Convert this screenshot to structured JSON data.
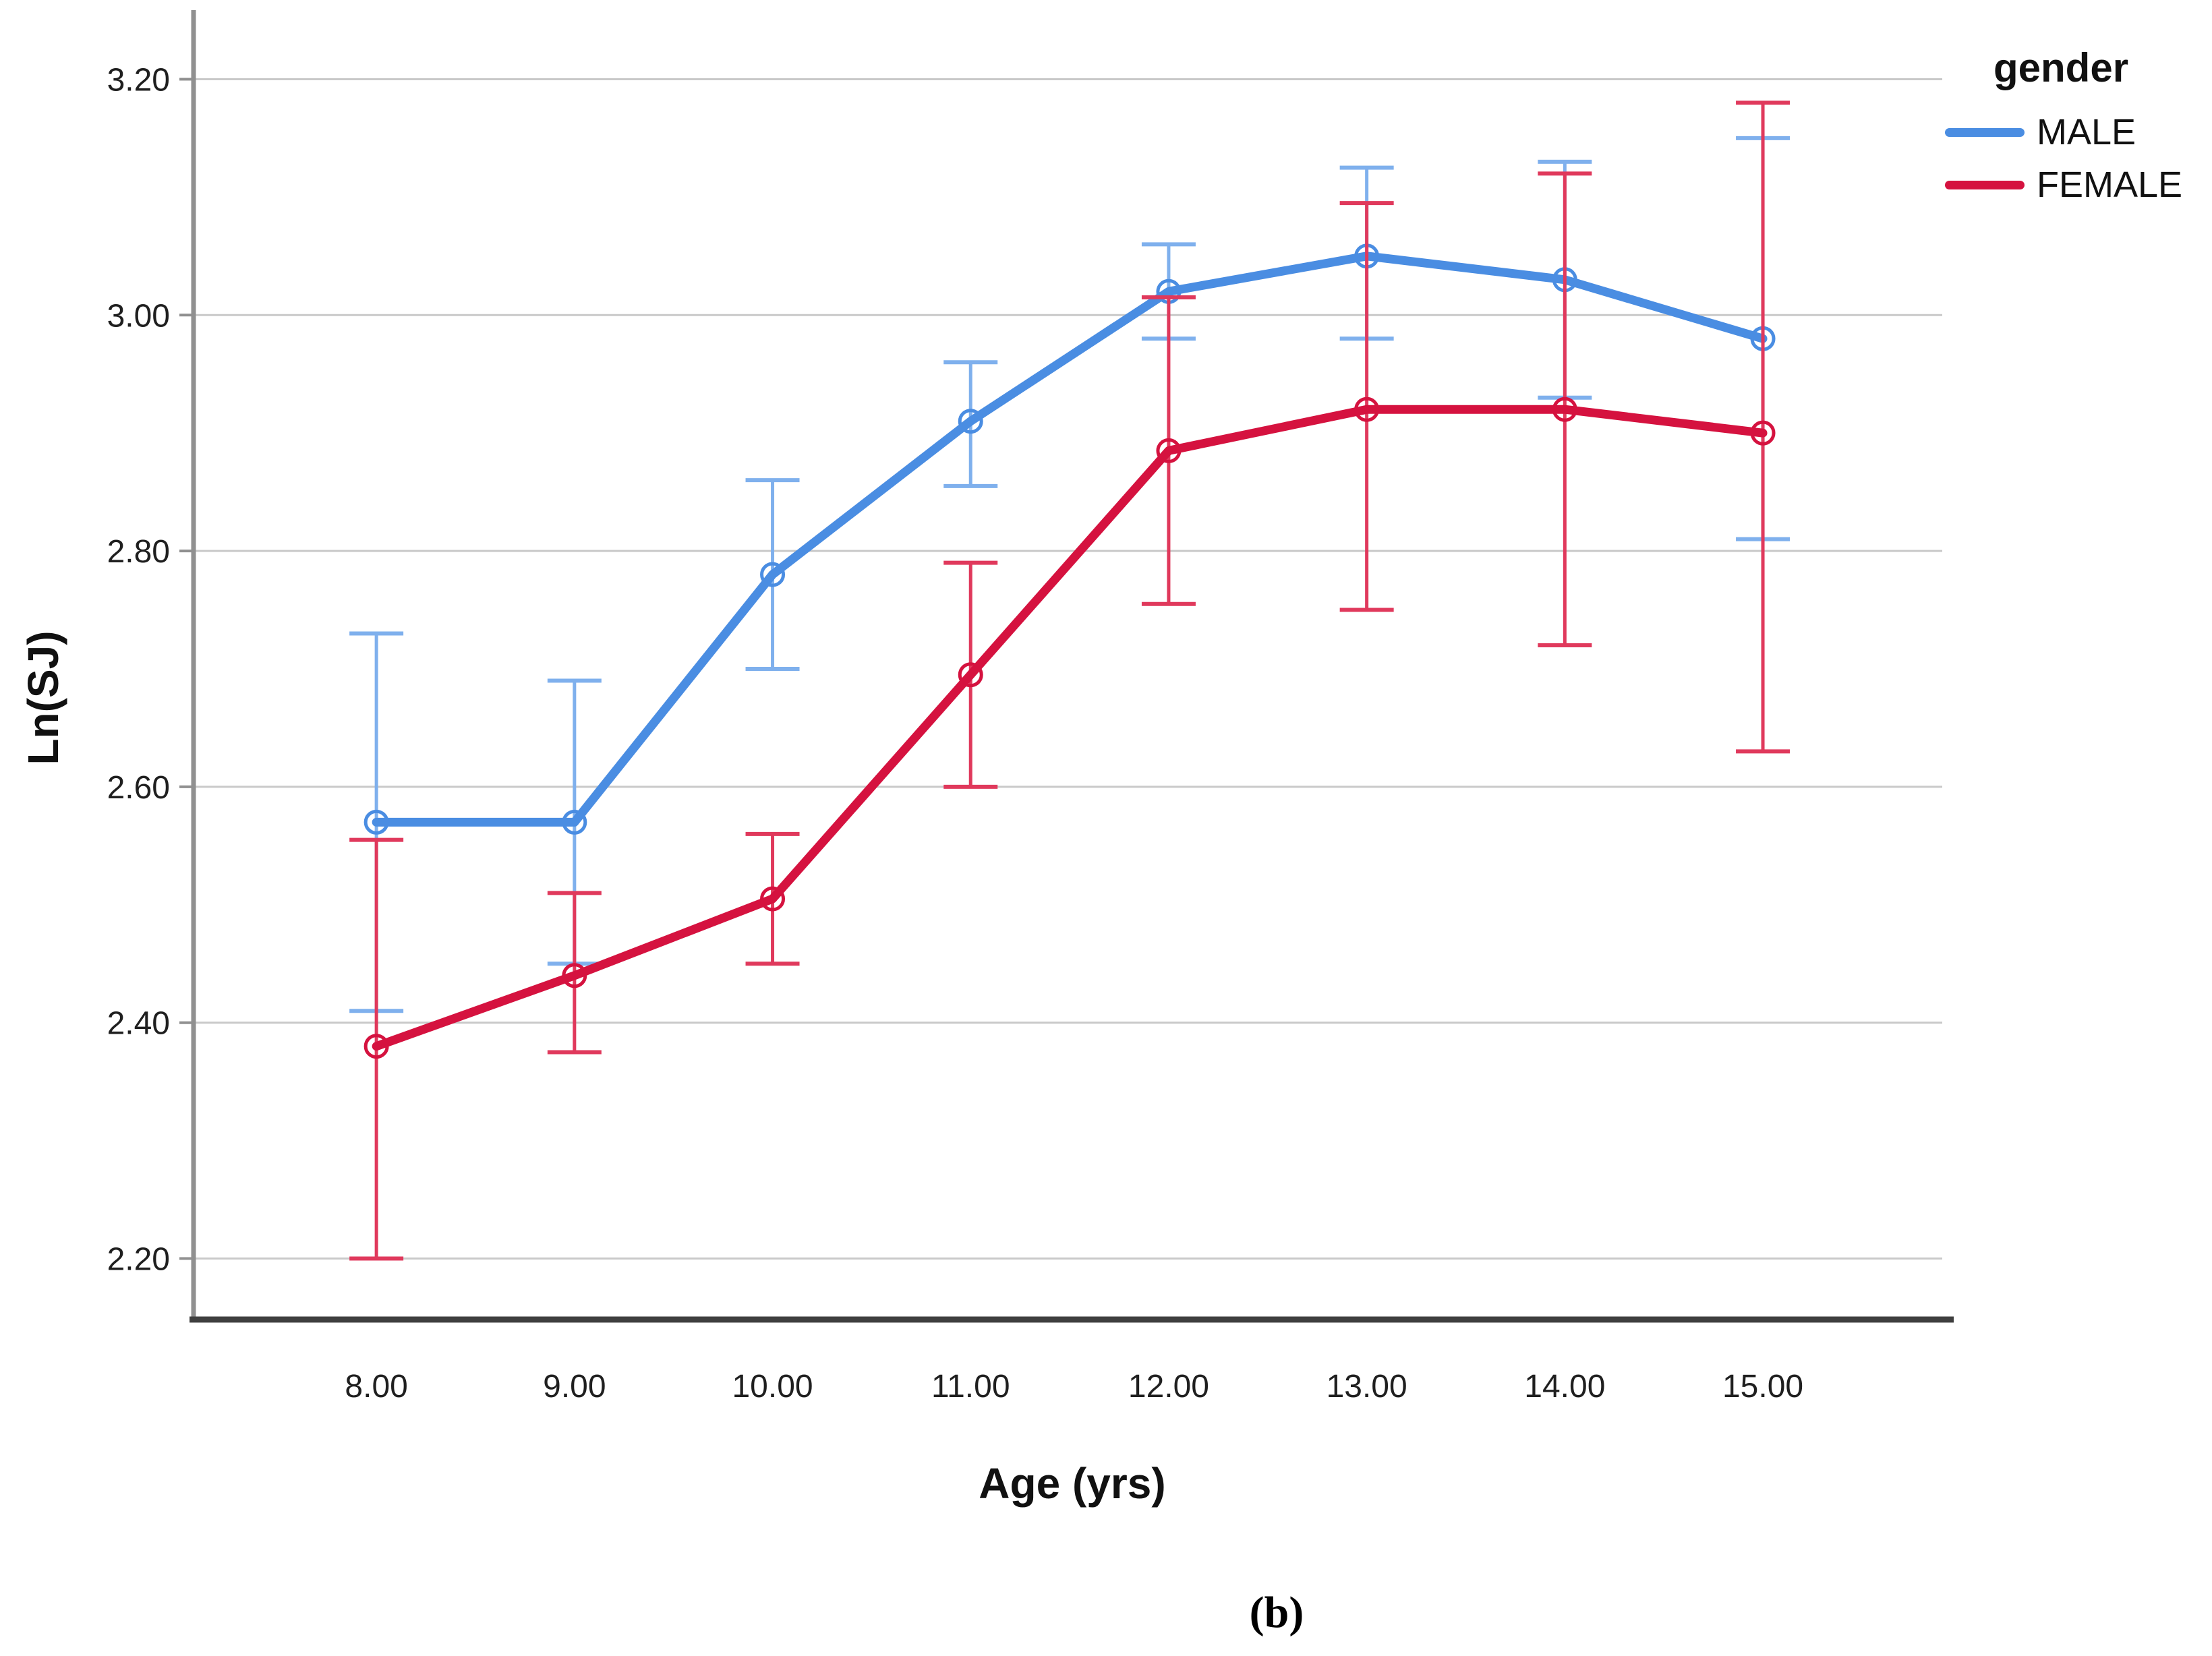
{
  "figure": {
    "caption": "(b)"
  },
  "chart_data": {
    "type": "line",
    "title": "",
    "xlabel": "Age (yrs)",
    "ylabel": "Ln(SJ)",
    "x": [
      8,
      9,
      10,
      11,
      12,
      13,
      14,
      15
    ],
    "x_tick_labels": [
      "8.00",
      "9.00",
      "10.00",
      "11.00",
      "12.00",
      "13.00",
      "14.00",
      "15.00"
    ],
    "y_ticks": [
      2.2,
      2.4,
      2.6,
      2.8,
      3.0,
      3.2
    ],
    "y_tick_labels": [
      "2.20",
      "2.40",
      "2.60",
      "2.80",
      "3.00",
      "3.20"
    ],
    "xlim": [
      7.07,
      15.96
    ],
    "ylim": [
      2.15,
      3.25
    ],
    "grid": "horizontal-only",
    "legend": {
      "title": "gender",
      "position": "top-right"
    },
    "error_bars": "confidence-interval-caps",
    "colors": {
      "male_line": "#4a8de2",
      "male_error": "#7fb0ed",
      "female_line": "#d5123f",
      "female_error": "#e0395c",
      "gridline": "#c9c9c9",
      "y_axis": "#909090",
      "x_axis": "#3f3f3f",
      "tick_text": "#1f1f1f"
    },
    "series": [
      {
        "name": "MALE",
        "color": "#4a8de2",
        "error_color": "#7fb0ed",
        "means": [
          2.57,
          2.57,
          2.78,
          2.91,
          3.02,
          3.05,
          3.03,
          2.98
        ],
        "ci_low": [
          2.41,
          2.45,
          2.7,
          2.855,
          2.98,
          2.98,
          2.93,
          2.81
        ],
        "ci_high": [
          2.73,
          2.69,
          2.86,
          2.96,
          3.06,
          3.125,
          3.13,
          3.15
        ]
      },
      {
        "name": "FEMALE",
        "color": "#d5123f",
        "error_color": "#e0395c",
        "means": [
          2.38,
          2.44,
          2.505,
          2.695,
          2.885,
          2.92,
          2.92,
          2.9
        ],
        "ci_low": [
          2.2,
          2.375,
          2.45,
          2.6,
          2.755,
          2.75,
          2.72,
          2.63
        ],
        "ci_high": [
          2.555,
          2.51,
          2.56,
          2.79,
          3.015,
          3.095,
          3.12,
          3.18
        ]
      }
    ]
  }
}
